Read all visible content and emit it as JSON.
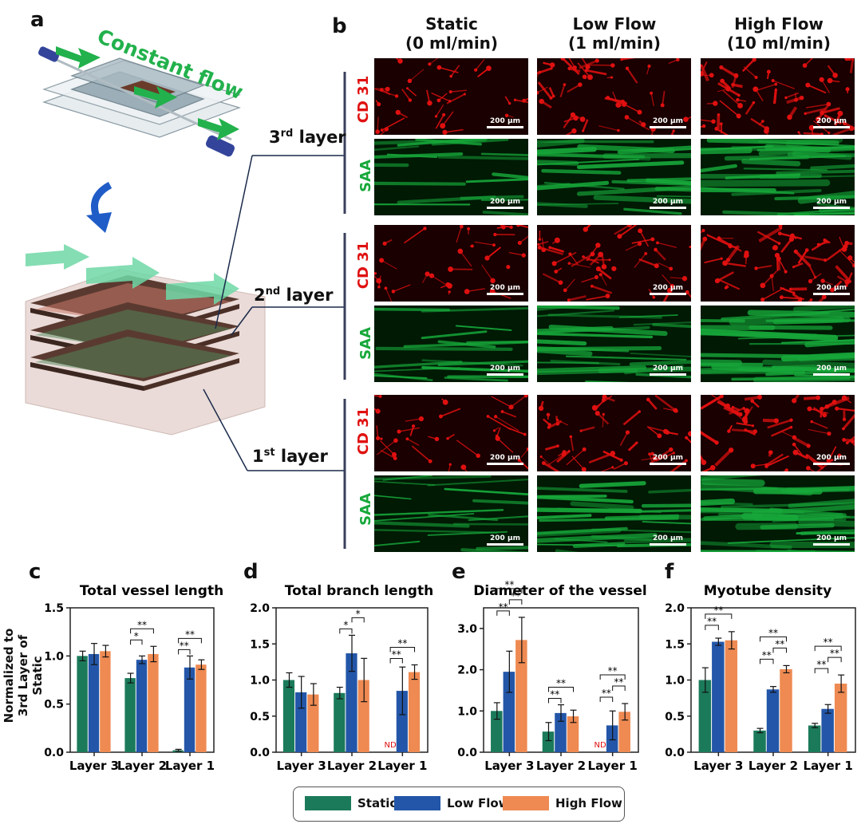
{
  "panels": {
    "a": "a",
    "b": "b",
    "c": "c",
    "d": "d",
    "e": "e",
    "f": "f"
  },
  "flow_label": "Constant flow",
  "columns": [
    {
      "line1": "Static",
      "line2": "(0 ml/min)"
    },
    {
      "line1": "Low Flow",
      "line2": "(1 ml/min)"
    },
    {
      "line1": "High Flow",
      "line2": "(10 ml/min)"
    }
  ],
  "layers": [
    {
      "num": "3",
      "sup": "rd",
      "word": " layer"
    },
    {
      "num": "2",
      "sup": "nd",
      "word": " layer"
    },
    {
      "num": "1",
      "sup": "st",
      "word": " layer"
    }
  ],
  "stains": {
    "cd31": "CD 31",
    "saa": "SAA"
  },
  "scale_bar": "200 µm",
  "colors": {
    "static": "#1b7a5a",
    "low": "#2356a8",
    "high": "#ee8a52",
    "cd31": "#e01010",
    "saa": "#17a83a",
    "arrow_green": "#22b14c",
    "arrow_blue": "#1f5cc7"
  },
  "ylabel_c": "Normalized to 3rd Layer of Static",
  "ylabel_c_line1": "Normalized to",
  "ylabel_c_line2": "3rd Layer of Static",
  "nd": "ND",
  "legend": [
    "Static",
    "Low Flow",
    "High Flow"
  ],
  "chart_data": [
    {
      "type": "bar",
      "title": "Total vessel length",
      "categories": [
        "Layer 3",
        "Layer 2",
        "Layer 1"
      ],
      "ylabel": "Normalized to 3rd Layer of Static",
      "ylim": [
        0,
        1.5
      ],
      "yticks": [
        "0.0",
        "0.5",
        "1.0",
        "1.5"
      ],
      "series": [
        {
          "name": "Static",
          "values": [
            1.0,
            0.77,
            0.02
          ],
          "err": [
            0.05,
            0.05,
            0.01
          ]
        },
        {
          "name": "Low Flow",
          "values": [
            1.02,
            0.96,
            0.88
          ],
          "err": [
            0.11,
            0.04,
            0.12
          ]
        },
        {
          "name": "High Flow",
          "values": [
            1.05,
            1.02,
            0.91
          ],
          "err": [
            0.06,
            0.08,
            0.05
          ]
        }
      ],
      "sig": [
        {
          "cat": 1,
          "from": 0,
          "to": 1,
          "label": "*"
        },
        {
          "cat": 1,
          "from": 0,
          "to": 2,
          "label": "**"
        },
        {
          "cat": 2,
          "from": 0,
          "to": 1,
          "label": "**"
        },
        {
          "cat": 2,
          "from": 0,
          "to": 2,
          "label": "**"
        }
      ]
    },
    {
      "type": "bar",
      "title": "Total branch length",
      "categories": [
        "Layer 3",
        "Layer 2",
        "Layer 1"
      ],
      "ylim": [
        0,
        2.0
      ],
      "yticks": [
        "0.0",
        "0.5",
        "1.0",
        "1.5",
        "2.0"
      ],
      "series": [
        {
          "name": "Static",
          "values": [
            1.0,
            0.82,
            0
          ],
          "err": [
            0.1,
            0.08,
            0
          ]
        },
        {
          "name": "Low Flow",
          "values": [
            0.83,
            1.37,
            0.85
          ],
          "err": [
            0.22,
            0.25,
            0.33
          ]
        },
        {
          "name": "High Flow",
          "values": [
            0.8,
            1.0,
            1.11
          ],
          "err": [
            0.15,
            0.3,
            0.1
          ]
        }
      ],
      "nd": [
        {
          "cat": 2,
          "series": 0
        }
      ],
      "sig": [
        {
          "cat": 1,
          "from": 0,
          "to": 1,
          "label": "*"
        },
        {
          "cat": 1,
          "from": 1,
          "to": 2,
          "label": "*"
        },
        {
          "cat": 2,
          "from": 0,
          "to": 1,
          "label": "**"
        },
        {
          "cat": 2,
          "from": 0,
          "to": 2,
          "label": "**"
        }
      ]
    },
    {
      "type": "bar",
      "title": "Diameter of the vessel",
      "categories": [
        "Layer 3",
        "Layer 2",
        "Layer 1"
      ],
      "ylim": [
        0,
        3.5
      ],
      "yticks": [
        "0.0",
        "1.0",
        "2.0",
        "3.0"
      ],
      "ytickvals": [
        0,
        1,
        2,
        3
      ],
      "series": [
        {
          "name": "Static",
          "values": [
            1.0,
            0.5,
            0
          ],
          "err": [
            0.2,
            0.22,
            0
          ]
        },
        {
          "name": "Low Flow",
          "values": [
            1.95,
            0.95,
            0.65
          ],
          "err": [
            0.5,
            0.2,
            0.35
          ]
        },
        {
          "name": "High Flow",
          "values": [
            2.72,
            0.87,
            0.98
          ],
          "err": [
            0.55,
            0.15,
            0.2
          ]
        }
      ],
      "nd": [
        {
          "cat": 2,
          "series": 0
        }
      ],
      "sig": [
        {
          "cat": 0,
          "from": 0,
          "to": 1,
          "label": "**"
        },
        {
          "cat": 0,
          "from": 1,
          "to": 2,
          "label": "**"
        },
        {
          "cat": 0,
          "from": 0,
          "to": 2,
          "label": "**"
        },
        {
          "cat": 1,
          "from": 0,
          "to": 1,
          "label": "**"
        },
        {
          "cat": 1,
          "from": 0,
          "to": 2,
          "label": "**"
        },
        {
          "cat": 2,
          "from": 0,
          "to": 1,
          "label": "**"
        },
        {
          "cat": 2,
          "from": 1,
          "to": 2,
          "label": "**"
        },
        {
          "cat": 2,
          "from": 0,
          "to": 2,
          "label": "**"
        }
      ]
    },
    {
      "type": "bar",
      "title": "Myotube density",
      "categories": [
        "Layer 3",
        "Layer 2",
        "Layer 1"
      ],
      "ylim": [
        0,
        2.0
      ],
      "yticks": [
        "0.0",
        "0.5",
        "1.0",
        "1.5",
        "2.0"
      ],
      "series": [
        {
          "name": "Static",
          "values": [
            1.0,
            0.3,
            0.37
          ],
          "err": [
            0.17,
            0.03,
            0.03
          ]
        },
        {
          "name": "Low Flow",
          "values": [
            1.53,
            0.87,
            0.6
          ],
          "err": [
            0.05,
            0.04,
            0.06
          ]
        },
        {
          "name": "High Flow",
          "values": [
            1.55,
            1.15,
            0.95
          ],
          "err": [
            0.12,
            0.05,
            0.12
          ]
        }
      ],
      "sig": [
        {
          "cat": 0,
          "from": 0,
          "to": 1,
          "label": "**"
        },
        {
          "cat": 0,
          "from": 0,
          "to": 2,
          "label": "**"
        },
        {
          "cat": 1,
          "from": 0,
          "to": 1,
          "label": "**"
        },
        {
          "cat": 1,
          "from": 1,
          "to": 2,
          "label": "**"
        },
        {
          "cat": 1,
          "from": 0,
          "to": 2,
          "label": "**"
        },
        {
          "cat": 2,
          "from": 0,
          "to": 1,
          "label": "**"
        },
        {
          "cat": 2,
          "from": 1,
          "to": 2,
          "label": "**"
        },
        {
          "cat": 2,
          "from": 0,
          "to": 2,
          "label": "**"
        }
      ]
    }
  ]
}
